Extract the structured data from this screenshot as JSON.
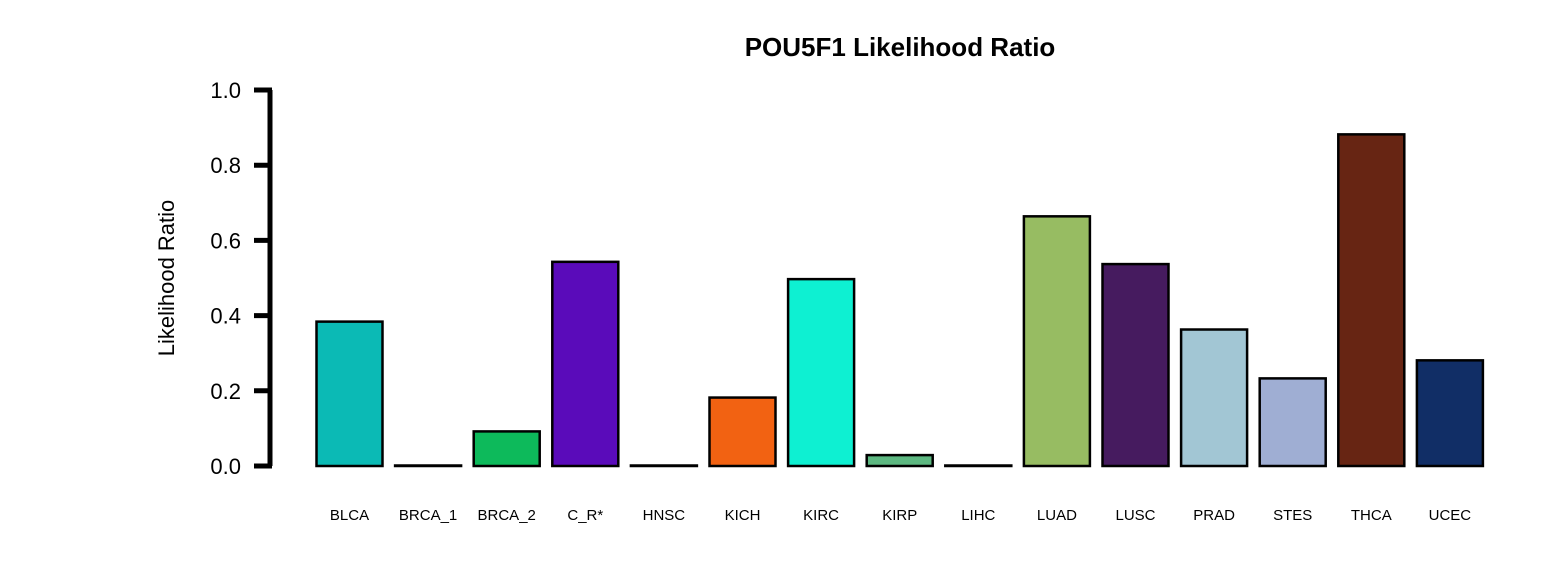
{
  "chart_data": {
    "type": "bar",
    "title": "POU5F1 Likelihood Ratio",
    "xlabel": "",
    "ylabel": "Likelihood Ratio",
    "ylim": [
      0,
      1.0
    ],
    "yticks": [
      "0.0",
      "0.2",
      "0.4",
      "0.6",
      "0.8",
      "1.0"
    ],
    "grid": false,
    "categories": [
      "BLCA",
      "BRCA_1",
      "BRCA_2",
      "C_R*",
      "HNSC",
      "KICH",
      "KIRC",
      "KIRP",
      "LIHC",
      "LUAD",
      "LUSC",
      "PRAD",
      "STES",
      "THCA",
      "UCEC"
    ],
    "values": [
      0.384,
      0.0,
      0.092,
      0.543,
      0.0,
      0.182,
      0.497,
      0.029,
      0.0,
      0.664,
      0.537,
      0.363,
      0.233,
      0.882,
      0.281
    ],
    "colors": [
      "#0BBAB5",
      "#FFFFFF",
      "#0DBA5B",
      "#5A0BBA",
      "#FFFFFF",
      "#F26212",
      "#0EF0D2",
      "#5DB881",
      "#FFFFFF",
      "#97BC62",
      "#461B5F",
      "#A2C6D4",
      "#9FAED3",
      "#672513",
      "#112E66"
    ]
  }
}
